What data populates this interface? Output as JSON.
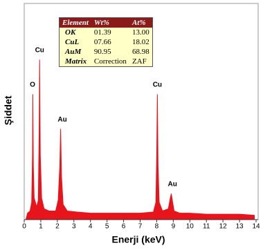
{
  "chart_data": {
    "type": "area",
    "ylabel": "Şiddet",
    "xlabel": "Enerji (keV)",
    "color": "#e8141c",
    "xlim": [
      0,
      14
    ],
    "xticks": [
      0,
      1,
      2,
      3,
      4,
      5,
      6,
      7,
      8,
      9,
      10,
      11,
      12,
      13,
      14
    ],
    "ylim": [
      0,
      100
    ],
    "x": [
      0.1,
      0.2,
      0.35,
      0.45,
      0.5,
      0.52,
      0.55,
      0.6,
      0.75,
      0.85,
      0.9,
      0.93,
      0.97,
      1.05,
      1.2,
      1.5,
      1.9,
      2.05,
      2.15,
      2.2,
      2.25,
      2.35,
      2.6,
      3.2,
      4,
      5,
      6,
      7,
      7.8,
      7.95,
      8.0,
      8.04,
      8.08,
      8.15,
      8.35,
      8.7,
      8.82,
      8.88,
      8.94,
      9.05,
      9.4,
      10,
      11,
      12,
      13,
      13.9
    ],
    "values": [
      0,
      3,
      4,
      8,
      30,
      58,
      25,
      10,
      6,
      9,
      40,
      74,
      30,
      10,
      5,
      4,
      4,
      9,
      25,
      42,
      20,
      7,
      4,
      3.5,
      3,
      3,
      3,
      3,
      3.5,
      8,
      30,
      58,
      25,
      8,
      4,
      5,
      10,
      12,
      9,
      4,
      3,
      3,
      2.5,
      2.5,
      2.5,
      2
    ],
    "annotations": [
      {
        "text": "O",
        "x": 0.5,
        "y": 61
      },
      {
        "text": "Cu",
        "x": 0.93,
        "y": 77
      },
      {
        "text": "Au",
        "x": 2.3,
        "y": 45
      },
      {
        "text": "Cu",
        "x": 8.04,
        "y": 61
      },
      {
        "text": "Au",
        "x": 8.95,
        "y": 15
      }
    ],
    "table": {
      "header": [
        "Element",
        "Wt%",
        "At%"
      ],
      "rows": [
        [
          "OK",
          "01.39",
          "13.00"
        ],
        [
          "CuL",
          "07.66",
          "18.02"
        ],
        [
          "AuM",
          "90.95",
          "68.98"
        ],
        [
          "Matrix",
          "Correction",
          "ZAF"
        ]
      ]
    }
  }
}
